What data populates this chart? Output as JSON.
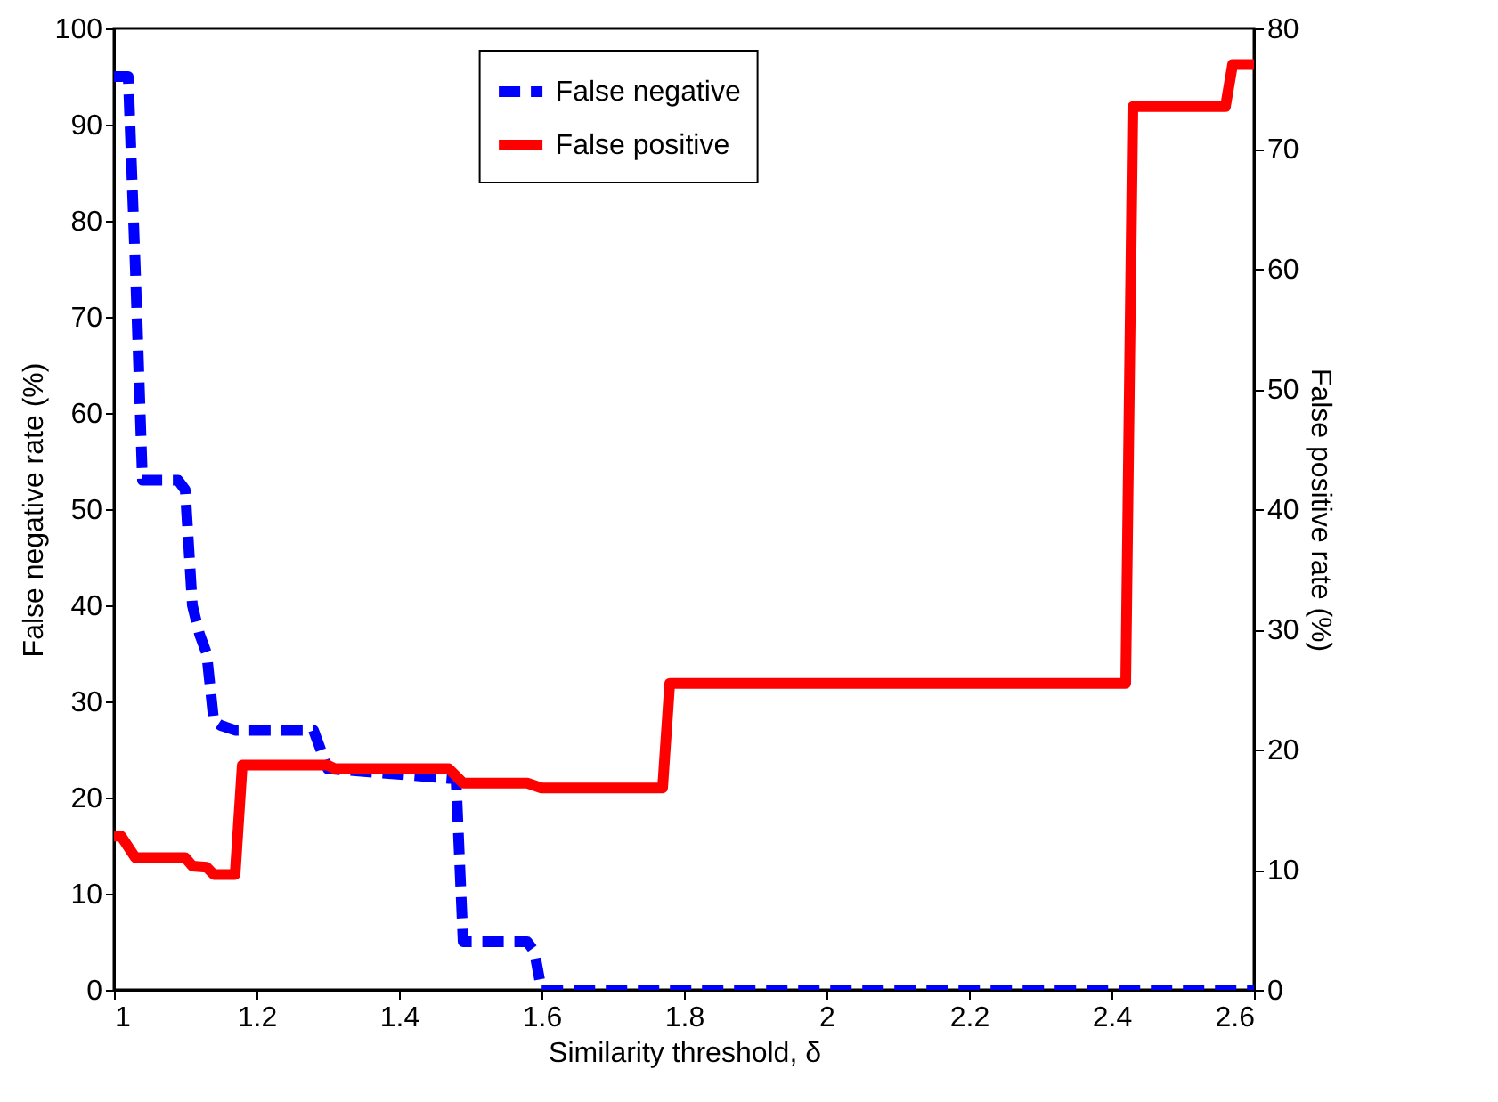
{
  "chart_data": {
    "type": "line",
    "xlabel": "Similarity threshold, δ",
    "ylabel": "False negative rate (%)",
    "y2label": "False positive rate (%)",
    "xlim": [
      1,
      2.6
    ],
    "xticks": [
      1,
      1.2,
      1.4,
      1.6,
      1.8,
      2,
      2.2,
      2.4,
      2.6
    ],
    "ylim": [
      0,
      100
    ],
    "yticks": [
      0,
      10,
      20,
      30,
      40,
      50,
      60,
      70,
      80,
      90,
      100
    ],
    "y2lim": [
      0,
      80
    ],
    "y2ticks": [
      0,
      10,
      20,
      30,
      40,
      50,
      60,
      70,
      80
    ],
    "legend": "top",
    "grid": false,
    "series": [
      {
        "name": "False negative",
        "color": "#0000ff",
        "line_style": "dashed",
        "x": [
          1,
          1.02,
          1.03,
          1.04,
          1.09,
          1.1,
          1.11,
          1.12,
          1.13,
          1.14,
          1.15,
          1.17,
          1.28,
          1.3,
          1.47,
          1.48,
          1.49,
          1.58,
          1.59,
          1.6,
          2.6
        ],
        "values": [
          95,
          95,
          75,
          53,
          53,
          52,
          40,
          37,
          35,
          28,
          27.5,
          27,
          27,
          23,
          22,
          22,
          5,
          5,
          4,
          0,
          0
        ]
      },
      {
        "name": "False positive",
        "color": "#ff0000",
        "line_style": "solid",
        "axis": "y2",
        "x": [
          1,
          1.01,
          1.03,
          1.1,
          1.11,
          1.13,
          1.14,
          1.17,
          1.18,
          1.3,
          1.31,
          1.47,
          1.49,
          1.58,
          1.6,
          1.77,
          1.78,
          2.42,
          2.43,
          2.56,
          2.57,
          2.6
        ],
        "values": [
          12.8,
          12.8,
          11,
          11,
          10.3,
          10.2,
          9.6,
          9.6,
          18.7,
          18.7,
          18.4,
          18.4,
          17.2,
          17.2,
          16.8,
          16.8,
          25.5,
          25.5,
          73.5,
          73.5,
          77,
          77
        ]
      }
    ]
  }
}
